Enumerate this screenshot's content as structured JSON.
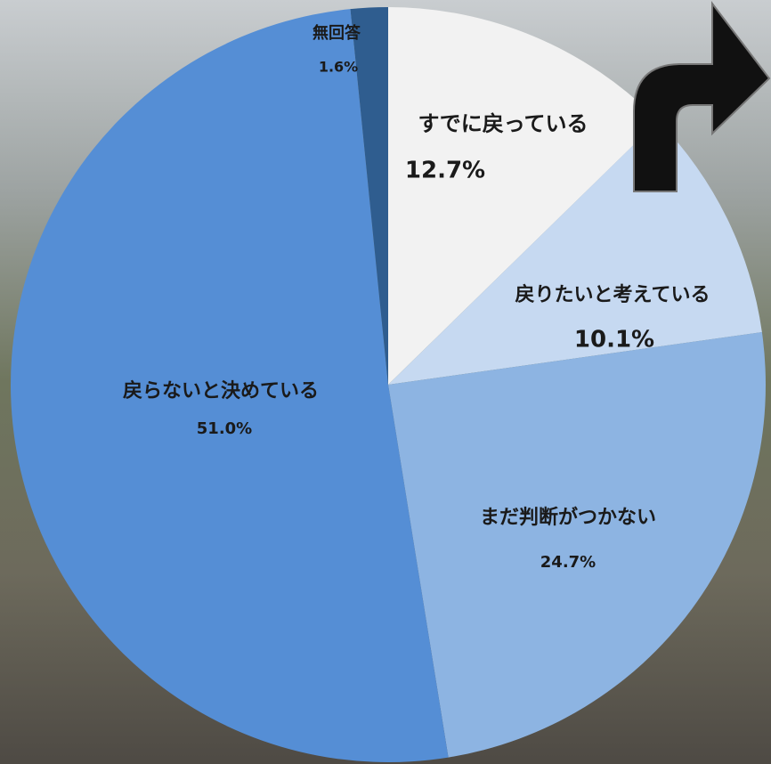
{
  "chart_data": {
    "type": "pie",
    "categories": [
      "すでに戻っている",
      "戻りたいと考えている",
      "まだ判断がつかない",
      "戻らないと決めている",
      "無回答"
    ],
    "values": [
      12.7,
      10.1,
      24.7,
      51.0,
      1.6
    ],
    "value_labels": [
      "12.7%",
      "10.1%",
      "24.7%",
      "51.0%",
      "1.6%"
    ],
    "colors": [
      "#f2f2f2",
      "#c6d9f1",
      "#8db4e2",
      "#558ed5",
      "#2f5d8f"
    ]
  }
}
